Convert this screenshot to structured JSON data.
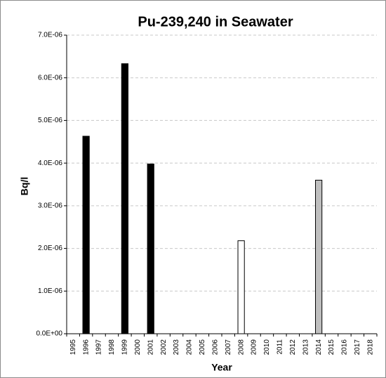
{
  "chart_data": {
    "type": "bar",
    "title": "Pu-239,240 in Seawater",
    "xlabel": "Year",
    "ylabel": "Bq/l",
    "categories": [
      "1995",
      "1996",
      "1997",
      "1998",
      "1999",
      "2000",
      "2001",
      "2002",
      "2003",
      "2004",
      "2005",
      "2006",
      "2007",
      "2008",
      "2009",
      "2010",
      "2011",
      "2012",
      "2013",
      "2014",
      "2015",
      "2016",
      "2017",
      "2018"
    ],
    "values": [
      null,
      4.63e-06,
      null,
      null,
      6.33e-06,
      null,
      3.98e-06,
      null,
      null,
      null,
      null,
      null,
      null,
      2.18e-06,
      null,
      null,
      null,
      null,
      null,
      3.6e-06,
      null,
      null,
      null,
      null
    ],
    "colors": [
      null,
      "#000000",
      null,
      null,
      "#000000",
      null,
      "#000000",
      null,
      null,
      null,
      null,
      null,
      null,
      "#ffffff",
      null,
      null,
      null,
      null,
      null,
      "#bfbfbf",
      null,
      null,
      null,
      null
    ],
    "ylim": [
      0,
      7e-06
    ],
    "yticks": [
      {
        "value": 0,
        "label": "0.0E+00"
      },
      {
        "value": 1e-06,
        "label": "1.0E-06"
      },
      {
        "value": 2e-06,
        "label": "2.0E-06"
      },
      {
        "value": 3e-06,
        "label": "3.0E-06"
      },
      {
        "value": 4e-06,
        "label": "4.0E-06"
      },
      {
        "value": 5e-06,
        "label": "5.0E-06"
      },
      {
        "value": 6e-06,
        "label": "6.0E-06"
      },
      {
        "value": 7e-06,
        "label": "7.0E-06"
      }
    ],
    "grid": true
  }
}
